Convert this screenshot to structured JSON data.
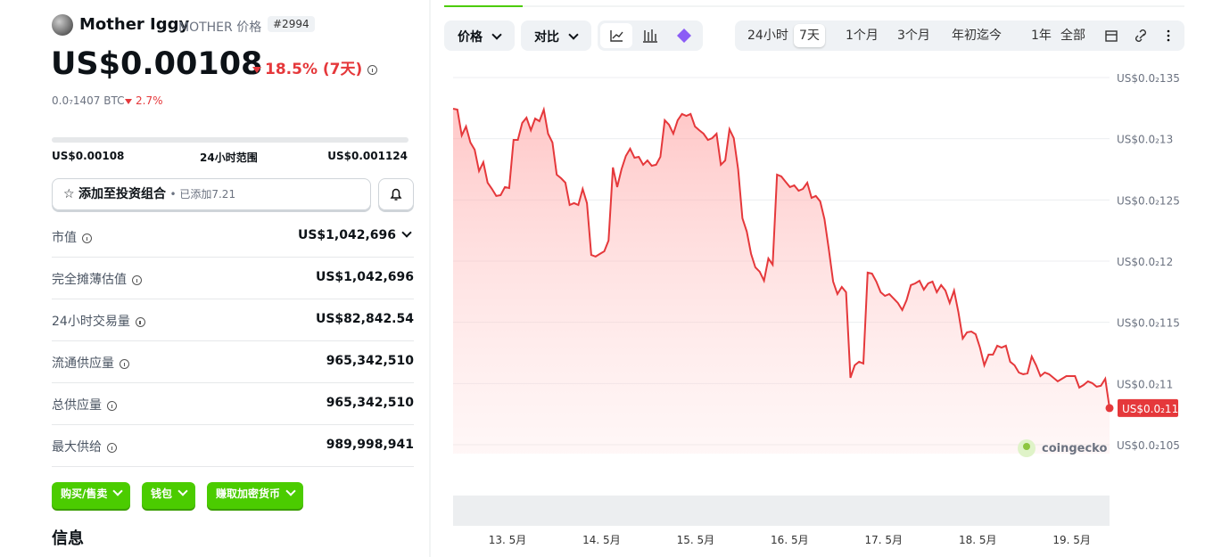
{
  "header": {
    "name": "Mother Iggy",
    "symbol": "MOTHER 价格",
    "rank": "#2994",
    "price": "US$0.00108",
    "change": "18.5% (7天)",
    "btc": "0.0₇1407 BTC",
    "btc_change": "2.7%"
  },
  "range": {
    "low": "US$0.00108",
    "label": "24小时范围",
    "high": "US$0.001124"
  },
  "portfolio": {
    "button": "添加至投资组合",
    "added": "• 已添加7.21"
  },
  "stats": [
    [
      "市值",
      "US$1,042,696"
    ],
    [
      "完全摊薄估值",
      "US$1,042,696"
    ],
    [
      "24小时交易量",
      "US$82,842.54"
    ],
    [
      "流通供应量",
      "965,342,510"
    ],
    [
      "总供应量",
      "965,342,510"
    ],
    [
      "最大供给",
      "989,998,941"
    ]
  ],
  "buttons": [
    "购买/售卖",
    "钱包",
    "赚取加密货币"
  ],
  "section": "信息",
  "toolbar": {
    "tabs": [
      "价格",
      "对比"
    ],
    "ranges": [
      "24小时",
      "7天",
      "1个月",
      "3个月",
      "年初迄今",
      "1年",
      "全部"
    ]
  },
  "chart_data": {
    "type": "line",
    "color": "#e5383b",
    "watermark": "coingecko",
    "last_label": "US$0.0₂11",
    "ylim": [
      0.00105,
      0.00135
    ],
    "yticks": [
      {
        "value": 0.00135,
        "label": "US$0.0₂135"
      },
      {
        "value": 0.0013,
        "label": "US$0.0₂13"
      },
      {
        "value": 0.00125,
        "label": "US$0.0₂125"
      },
      {
        "value": 0.0012,
        "label": "US$0.0₂12"
      },
      {
        "value": 0.00115,
        "label": "US$0.0₂115"
      },
      {
        "value": 0.0011,
        "label": "US$0.0₂11"
      },
      {
        "value": 0.00105,
        "label": "US$0.0₂105"
      }
    ],
    "xlabels": [
      "13. 5月",
      "14. 5月",
      "15. 5月",
      "16. 5月",
      "17. 5月",
      "18. 5月",
      "19. 5月"
    ],
    "values": [
      0.0013245,
      0.0013238,
      0.0013027,
      0.00131,
      0.0012969,
      0.001291,
      0.0012736,
      0.0012808,
      0.0012641,
      0.001259,
      0.0012532,
      0.0012539,
      0.0012605,
      0.0012597,
      0.001299,
      0.001299,
      0.0013129,
      0.0013172,
      0.001307,
      0.0013165,
      0.0013143,
      0.0013238,
      0.0013041,
      0.0012969,
      0.0012706,
      0.0012677,
      0.0012641,
      0.0012459,
      0.0012474,
      0.0012459,
      0.001259,
      0.0012474,
      0.0012051,
      0.0012037,
      0.0012059,
      0.001208,
      0.0012168,
      0.0012765,
      0.0012605,
      0.001275,
      0.0012859,
      0.0012918,
      0.0012845,
      0.0012852,
      0.0012787,
      0.0012823,
      0.0012779,
      0.0012787,
      0.0012852,
      0.0013151,
      0.0013114,
      0.0013041,
      0.0013151,
      0.0013202,
      0.0013187,
      0.0013202,
      0.00131,
      0.001307,
      0.0013041,
      0.001299,
      0.0013005,
      0.0013041,
      0.0012787,
      0.0012823,
      0.0013078,
      0.0013005,
      0.001275,
      0.001235,
      0.0012241,
      0.0012059,
      0.0011949,
      0.0011913,
      0.001184,
      0.0012022,
      0.0011971,
      0.0012706,
      0.0012692,
      0.0012648,
      0.0012605,
      0.0012619,
      0.0012575,
      0.001259,
      0.0012641,
      0.0012517,
      0.0012532,
      0.0012488,
      0.0012342,
      0.0012095,
      0.0011833,
      0.0011731,
      0.0011789,
      0.0011746,
      0.0011047,
      0.0011149,
      0.0011178,
      0.0011163,
      0.0011906,
      0.0011898,
      0.0011833,
      0.0011746,
      0.0011716,
      0.0011731,
      0.0011695,
      0.0011658,
      0.00116,
      0.001168,
      0.0011804,
      0.0011818,
      0.001184,
      0.0011767,
      0.0011818,
      0.0011833,
      0.0011746,
      0.0011804,
      0.001176,
      0.0011658,
      0.001176,
      0.0011585,
      0.0011367,
      0.0011418,
      0.0011425,
      0.0011403,
      0.0011294,
      0.0011149,
      0.0011236,
      0.0011236,
      0.0011309,
      0.0011294,
      0.0011309,
      0.0011178,
      0.0011149,
      0.001109,
      0.0011076,
      0.0011083,
      0.0011221,
      0.0011149,
      0.0011061,
      0.001109,
      0.0011076,
      0.0011047,
      0.0011018,
      0.0011039,
      0.0011061,
      0.0011061,
      0.0011061,
      0.0010967,
      0.0010988,
      0.0011018,
      0.0011003,
      0.0010974,
      0.0010981,
      0.0011039,
      0.0010799
    ]
  }
}
